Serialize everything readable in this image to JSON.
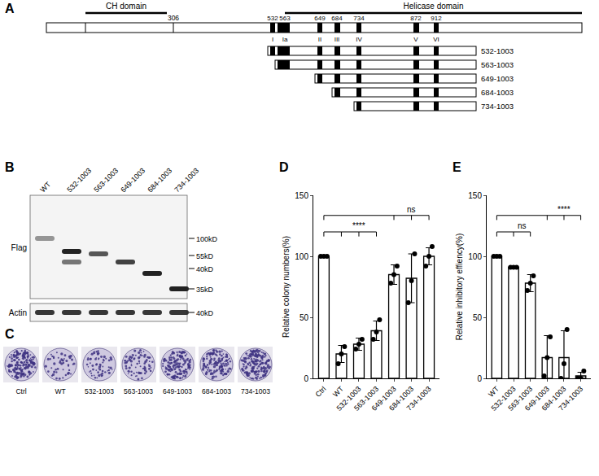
{
  "diagram": {
    "letter": "A",
    "domains": [
      "CH domain",
      "Helicase domain"
    ],
    "boundary": 306,
    "motifs": [
      {
        "position": 532,
        "name": "I"
      },
      {
        "position": 563,
        "name": "Ia"
      },
      {
        "position": 649,
        "name": "II"
      },
      {
        "position": 684,
        "name": "III"
      },
      {
        "position": 734,
        "name": "IV"
      },
      {
        "position": 872,
        "name": "V"
      },
      {
        "position": 912,
        "name": "VI"
      }
    ],
    "constructs": [
      "532-1003",
      "563-1003",
      "649-1003",
      "684-1003",
      "734-1003"
    ]
  },
  "blot": {
    "letter": "B",
    "lanes": [
      "WT",
      "532-1003",
      "563-1003",
      "649-1003",
      "684-1003",
      "734-1003"
    ],
    "rows": [
      "Flag",
      "Actin"
    ],
    "markers": [
      {
        "row": "Flag",
        "label": "100kD"
      },
      {
        "row": "Flag",
        "label": "55kD"
      },
      {
        "row": "Flag",
        "label": "40kD"
      },
      {
        "row": "Flag",
        "label": "35kD"
      },
      {
        "row": "Actin",
        "label": "40kD"
      }
    ]
  },
  "colonies": {
    "letter": "C",
    "plates": [
      "Ctrl",
      "WT",
      "532-1003",
      "563-1003",
      "649-1003",
      "684-1003",
      "734-1003"
    ]
  },
  "chart_data": [
    {
      "panel": "D",
      "type": "bar",
      "categories": [
        "Ctrl",
        "WT",
        "532-1003",
        "563-1003",
        "649-1003",
        "684-1003",
        "734-1003"
      ],
      "values": [
        100,
        20,
        28,
        39,
        85,
        82,
        100
      ],
      "error": [
        0,
        7,
        5,
        8,
        8,
        20,
        7
      ],
      "points": [
        [
          100,
          100,
          100
        ],
        [
          12,
          20,
          26
        ],
        [
          24,
          28,
          32
        ],
        [
          32,
          38,
          48
        ],
        [
          78,
          85,
          92
        ],
        [
          62,
          80,
          102
        ],
        [
          92,
          100,
          108
        ]
      ],
      "ylabel": "Relative colony numbers(%)",
      "ylim": [
        0,
        150
      ],
      "yticks": [
        0,
        50,
        100,
        150
      ],
      "grid": false,
      "color": "#ffffff",
      "marker": "circle",
      "comparisons": [
        {
          "from": "Ctrl",
          "to": [
            "WT",
            "532-1003",
            "563-1003"
          ],
          "label": "****"
        },
        {
          "from": "Ctrl",
          "to": [
            "649-1003",
            "684-1003",
            "734-1003"
          ],
          "label": "ns"
        }
      ]
    },
    {
      "panel": "E",
      "type": "bar",
      "categories": [
        "WT",
        "532-1003",
        "563-1003",
        "649-1003",
        "684-1003",
        "734-1003"
      ],
      "values": [
        100,
        91,
        78,
        17,
        17,
        2
      ],
      "error": [
        0,
        1,
        7,
        18,
        22,
        3
      ],
      "points": [
        [
          100,
          100,
          100
        ],
        [
          91,
          91,
          91
        ],
        [
          72,
          78,
          84
        ],
        [
          2,
          17,
          34
        ],
        [
          0,
          12,
          40
        ],
        [
          0,
          0,
          6
        ]
      ],
      "ylabel": "Relative inhibitory effiency(%)",
      "ylim": [
        0,
        150
      ],
      "yticks": [
        0,
        50,
        100,
        150
      ],
      "grid": false,
      "color": "#ffffff",
      "marker": "circle",
      "comparisons": [
        {
          "from": "WT",
          "to": [
            "532-1003",
            "563-1003"
          ],
          "label": "ns"
        },
        {
          "from": "WT",
          "to": [
            "649-1003",
            "684-1003",
            "734-1003"
          ],
          "label": "****"
        }
      ]
    }
  ]
}
